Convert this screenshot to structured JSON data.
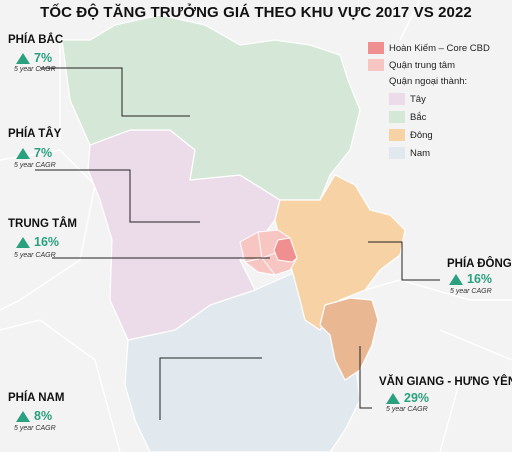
{
  "title": "TỐC ĐỘ TĂNG TRƯỞNG GIÁ THEO KHU VỰC 2017 VS 2022",
  "legend": {
    "items": [
      {
        "label": "Hoàn Kiếm – Core CBD",
        "color": "#f08f8f"
      },
      {
        "label": "Quận trung tâm",
        "color": "#f8c6c2"
      },
      {
        "label": "Quận ngoại thành:",
        "color": ""
      },
      {
        "label": "Tây",
        "color": "#ecdcea"
      },
      {
        "label": "Bắc",
        "color": "#d5e7d7"
      },
      {
        "label": "Đông",
        "color": "#f6d2a5"
      },
      {
        "label": "Nam",
        "color": "#e2e9ee"
      }
    ]
  },
  "regions": {
    "bac": {
      "name": "PHÍA BẮC",
      "value": "7%",
      "cagr": "5 year CAGR"
    },
    "tay": {
      "name": "PHÍA TÂY",
      "value": "7%",
      "cagr": "5 year CAGR"
    },
    "trung_tam": {
      "name": "TRUNG TÂM",
      "value": "16%",
      "cagr": "5 year CAGR"
    },
    "dong": {
      "name": "PHÍA ĐÔNG",
      "value": "16%",
      "cagr": "5 year CAGR"
    },
    "nam": {
      "name": "PHÍA NAM",
      "value": "8%",
      "cagr": "5 year CAGR"
    },
    "van_giang": {
      "name": "VĂN GIANG - HƯNG YÊN",
      "value": "29%",
      "cagr": "5 year CAGR"
    }
  },
  "colors": {
    "growth_green": "#2aa17e",
    "background_land": "#f1f1f1",
    "boundary": "#ffffff"
  }
}
